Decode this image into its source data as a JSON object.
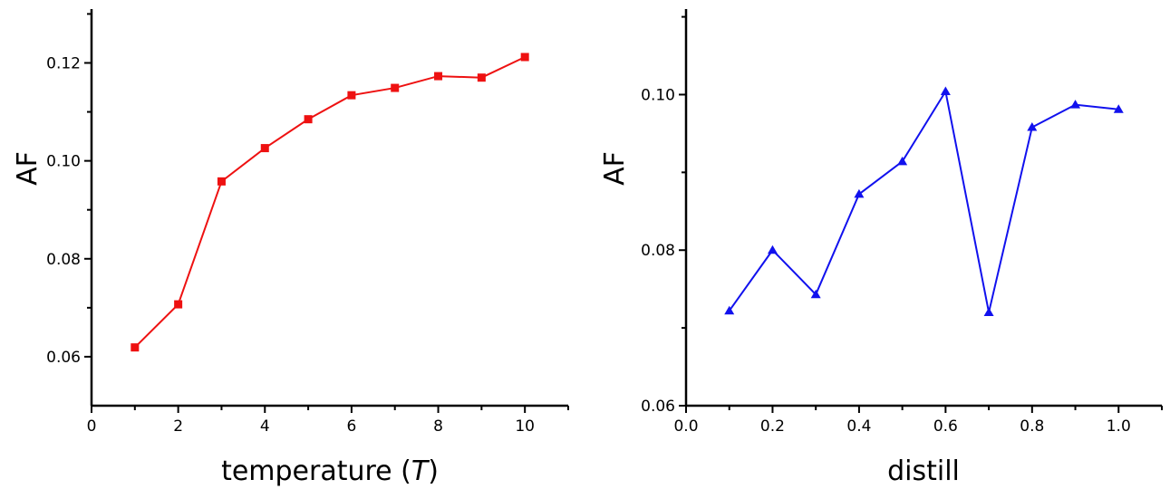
{
  "chart_data": [
    {
      "type": "line",
      "xlabel": "temperature (",
      "xlabel_var": "T",
      "xlabel_close": ")",
      "ylabel": "AF",
      "xlim": [
        0,
        11
      ],
      "ylim": [
        0.05,
        0.131
      ],
      "x_ticks": [
        0,
        2,
        4,
        6,
        8,
        10
      ],
      "x_tick_labels": [
        "0",
        "2",
        "4",
        "6",
        "8",
        "10"
      ],
      "y_ticks": [
        0.06,
        0.08,
        0.1,
        0.12
      ],
      "y_tick_labels": [
        "0.06",
        "0.08",
        "0.10",
        "0.12"
      ],
      "marker": "square",
      "color": "#ee1111",
      "series": [
        {
          "x": [
            1,
            2,
            3,
            4,
            5,
            6,
            7,
            8,
            9,
            10
          ],
          "y": [
            0.0619,
            0.0707,
            0.0958,
            0.1026,
            0.1085,
            0.1134,
            0.1149,
            0.1173,
            0.117,
            0.1212
          ]
        }
      ]
    },
    {
      "type": "line",
      "xlabel": "distill",
      "ylabel": "AF",
      "xlim": [
        0,
        1.1
      ],
      "ylim": [
        0.06,
        0.111
      ],
      "x_ticks": [
        0,
        0.2,
        0.4,
        0.6,
        0.8,
        1.0
      ],
      "x_tick_labels": [
        "0.0",
        "0.2",
        "0.4",
        "0.6",
        "0.8",
        "1.0"
      ],
      "y_ticks": [
        0.06,
        0.08,
        0.1
      ],
      "y_tick_labels": [
        "0.06",
        "0.08",
        "0.10"
      ],
      "marker": "triangle",
      "color": "#1111ee",
      "series": [
        {
          "x": [
            0.1,
            0.2,
            0.3,
            0.4,
            0.5,
            0.6,
            0.7,
            0.8,
            0.9,
            1.0
          ],
          "y": [
            0.0722,
            0.08,
            0.0743,
            0.0872,
            0.0914,
            0.1004,
            0.072,
            0.0958,
            0.0987,
            0.0981
          ]
        }
      ]
    }
  ]
}
